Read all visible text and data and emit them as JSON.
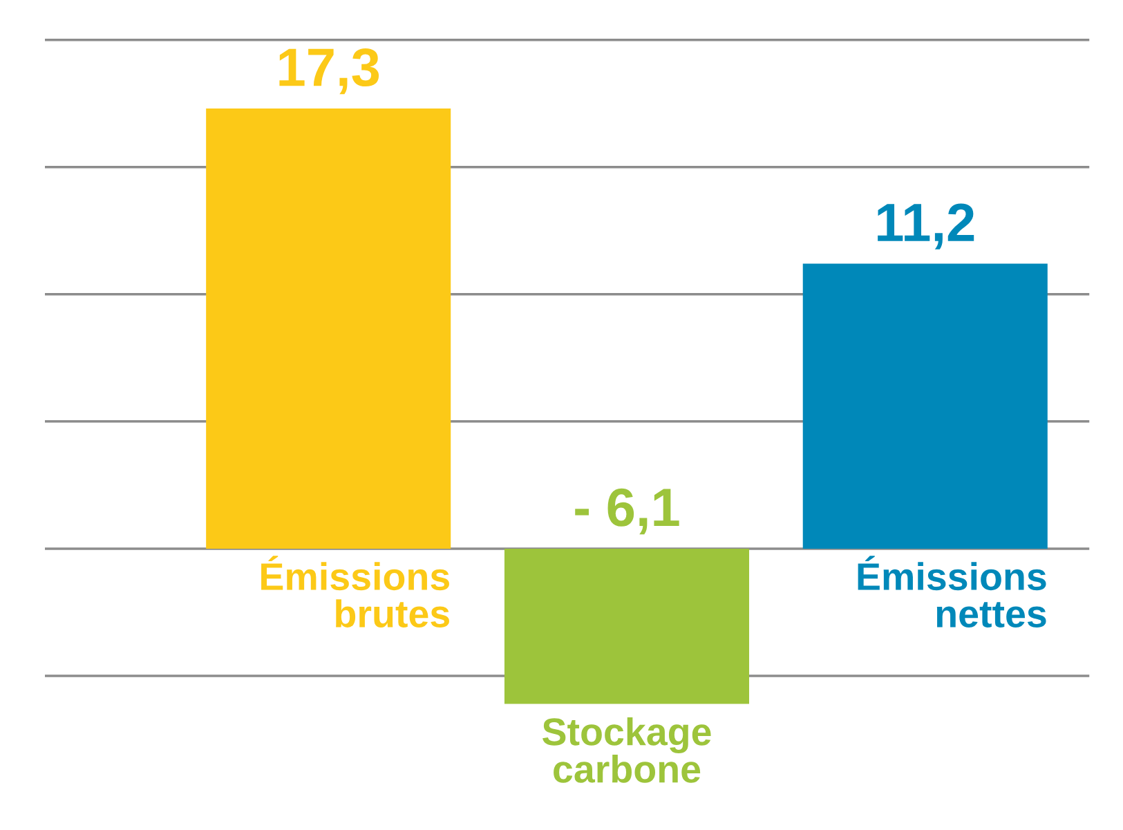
{
  "chart_data": {
    "type": "bar",
    "categories": [
      "Émissions\nbrutes",
      "Stockage\ncarbone",
      "Émissions\nnettes"
    ],
    "values": [
      17.3,
      -6.1,
      11.2
    ],
    "colors": [
      "#fcc917",
      "#9dc43b",
      "#0088b9"
    ],
    "value_labels": [
      "17,3",
      "- 6,1",
      "11,2"
    ],
    "yticks": [
      {
        "value": -5,
        "label": null
      },
      {
        "value": 0,
        "label": null
      },
      {
        "value": 5,
        "label": null
      },
      {
        "value": 10,
        "label": null
      },
      {
        "value": 15,
        "label": null
      },
      {
        "value": 20,
        "label": null
      }
    ],
    "grid": "y"
  }
}
